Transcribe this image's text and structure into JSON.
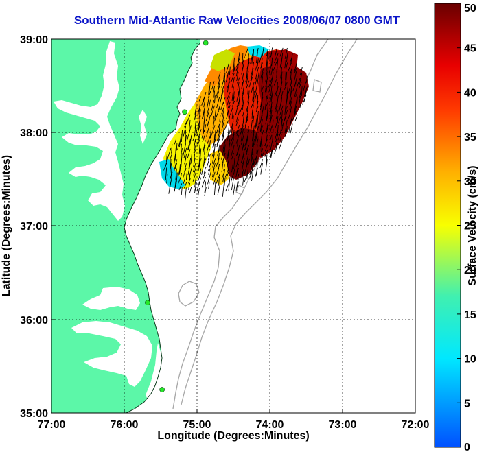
{
  "title": "Southern Mid-Atlantic Raw Velocities 2008/06/07 0800 GMT",
  "x_axis": {
    "label": "Longitude (Degrees:Minutes)",
    "ticks": [
      "77:00",
      "76:00",
      "75:00",
      "74:00",
      "73:00",
      "72:00"
    ]
  },
  "y_axis": {
    "label": "Latitude (Degrees:Minutes)",
    "ticks": [
      "39:00",
      "38:00",
      "37:00",
      "36:00",
      "35:00"
    ]
  },
  "colorbar": {
    "label": "Surface Velocity (cm/s)",
    "ticks": [
      "50",
      "45",
      "40",
      "35",
      "30",
      "25",
      "20",
      "15",
      "10",
      "5",
      "0"
    ],
    "min": 0,
    "max": 50
  },
  "colors": {
    "land": "#5cf7a8",
    "title": "#0a14c8",
    "station": "#26e82a",
    "bathymetry": "#a6a6a6"
  },
  "stations": [
    {
      "lon": -74.88,
      "lat": 38.96
    },
    {
      "lon": -75.17,
      "lat": 38.22
    },
    {
      "lon": -75.68,
      "lat": 36.18
    },
    {
      "lon": -75.48,
      "lat": 35.25
    }
  ]
}
